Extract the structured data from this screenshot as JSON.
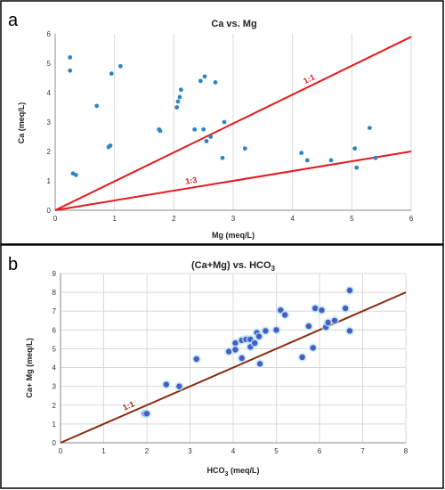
{
  "chart_data": [
    {
      "panel": "a",
      "type": "scatter",
      "title": "Ca vs. Mg",
      "xlabel": "Mg (meq/L)",
      "ylabel": "Ca (meq/L)",
      "xlim": [
        0,
        6
      ],
      "ylim": [
        0,
        6
      ],
      "xticks": [
        "0",
        "1",
        "2",
        "3",
        "4",
        "5",
        "6"
      ],
      "yticks": [
        "0",
        "1",
        "2",
        "3",
        "4",
        "5",
        "6"
      ],
      "grid": "vertical",
      "marker_color": "#2e86c1",
      "reference_line_color": "#e41a1c",
      "reference_lines": [
        {
          "label": "1:1",
          "x": [
            0,
            6
          ],
          "y": [
            0,
            5.9
          ]
        },
        {
          "label": "1:3",
          "x": [
            0,
            6
          ],
          "y": [
            0,
            2.0
          ]
        }
      ],
      "points": [
        {
          "x": 0.25,
          "y": 5.2
        },
        {
          "x": 0.25,
          "y": 4.75
        },
        {
          "x": 0.3,
          "y": 1.25
        },
        {
          "x": 0.35,
          "y": 1.2
        },
        {
          "x": 0.7,
          "y": 3.55
        },
        {
          "x": 0.9,
          "y": 2.15
        },
        {
          "x": 0.93,
          "y": 2.2
        },
        {
          "x": 0.95,
          "y": 4.65
        },
        {
          "x": 1.1,
          "y": 4.9
        },
        {
          "x": 1.75,
          "y": 2.75
        },
        {
          "x": 1.77,
          "y": 2.7
        },
        {
          "x": 2.05,
          "y": 3.5
        },
        {
          "x": 2.07,
          "y": 3.7
        },
        {
          "x": 2.1,
          "y": 3.85
        },
        {
          "x": 2.12,
          "y": 4.1
        },
        {
          "x": 2.35,
          "y": 2.75
        },
        {
          "x": 2.45,
          "y": 4.4
        },
        {
          "x": 2.52,
          "y": 4.55
        },
        {
          "x": 2.5,
          "y": 2.75
        },
        {
          "x": 2.55,
          "y": 2.35
        },
        {
          "x": 2.62,
          "y": 2.5
        },
        {
          "x": 2.7,
          "y": 4.35
        },
        {
          "x": 2.82,
          "y": 1.78
        },
        {
          "x": 2.85,
          "y": 3.0
        },
        {
          "x": 3.2,
          "y": 2.1
        },
        {
          "x": 4.15,
          "y": 1.95
        },
        {
          "x": 4.25,
          "y": 1.7
        },
        {
          "x": 4.65,
          "y": 1.7
        },
        {
          "x": 5.05,
          "y": 2.1
        },
        {
          "x": 5.08,
          "y": 1.45
        },
        {
          "x": 5.3,
          "y": 2.8
        },
        {
          "x": 5.4,
          "y": 1.78
        }
      ]
    },
    {
      "panel": "b",
      "type": "scatter",
      "title": "(Ca+Mg) vs. HCO",
      "title_sub": "3",
      "xlabel": "HCO",
      "xlabel_sub": "3",
      "xlabel_unit": " (meq/L)",
      "ylabel": "Ca+ Mg (meq/L)",
      "xlim": [
        0,
        8
      ],
      "ylim": [
        0,
        9
      ],
      "xticks": [
        "0",
        "1",
        "2",
        "3",
        "4",
        "5",
        "6",
        "7",
        "8"
      ],
      "yticks": [
        "0",
        "1",
        "2",
        "3",
        "4",
        "5",
        "6",
        "7",
        "8",
        "9"
      ],
      "grid": "both",
      "marker_color": "#4a5bc4",
      "reference_line_color": "#8b2c12",
      "reference_lines": [
        {
          "label": "1:1",
          "x": [
            0,
            8
          ],
          "y": [
            0,
            8
          ]
        }
      ],
      "points": [
        {
          "x": 1.95,
          "y": 1.55
        },
        {
          "x": 2.0,
          "y": 1.55
        },
        {
          "x": 2.45,
          "y": 3.1
        },
        {
          "x": 2.75,
          "y": 3.0
        },
        {
          "x": 3.15,
          "y": 4.45
        },
        {
          "x": 3.9,
          "y": 4.85
        },
        {
          "x": 4.05,
          "y": 5.3
        },
        {
          "x": 4.05,
          "y": 4.95
        },
        {
          "x": 4.2,
          "y": 4.5
        },
        {
          "x": 4.2,
          "y": 5.45
        },
        {
          "x": 4.3,
          "y": 5.5
        },
        {
          "x": 4.4,
          "y": 5.5
        },
        {
          "x": 4.4,
          "y": 5.1
        },
        {
          "x": 4.5,
          "y": 5.3
        },
        {
          "x": 4.55,
          "y": 5.85
        },
        {
          "x": 4.6,
          "y": 5.65
        },
        {
          "x": 4.62,
          "y": 4.2
        },
        {
          "x": 4.75,
          "y": 5.95
        },
        {
          "x": 5.0,
          "y": 6.0
        },
        {
          "x": 5.1,
          "y": 7.05
        },
        {
          "x": 5.2,
          "y": 6.8
        },
        {
          "x": 5.6,
          "y": 4.55
        },
        {
          "x": 5.75,
          "y": 6.2
        },
        {
          "x": 5.85,
          "y": 5.05
        },
        {
          "x": 5.9,
          "y": 7.15
        },
        {
          "x": 6.05,
          "y": 7.05
        },
        {
          "x": 6.15,
          "y": 6.15
        },
        {
          "x": 6.2,
          "y": 6.4
        },
        {
          "x": 6.35,
          "y": 6.5
        },
        {
          "x": 6.6,
          "y": 7.15
        },
        {
          "x": 6.7,
          "y": 8.1
        },
        {
          "x": 6.7,
          "y": 5.95
        }
      ]
    }
  ]
}
